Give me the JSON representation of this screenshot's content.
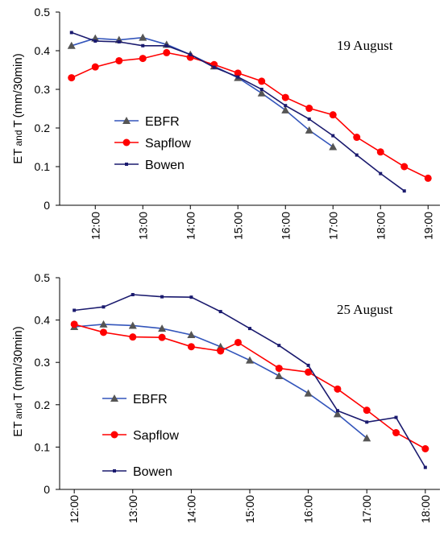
{
  "colors": {
    "ebfr": "#3355bb",
    "sapflow": "#ff0000",
    "bowen": "#1a1a6e",
    "ebfr_marker": "#555555"
  },
  "chart_data": [
    {
      "type": "line",
      "annotation": "19 August",
      "ylabel_parts": [
        "ET",
        "and",
        "T",
        "(mm/30min)"
      ],
      "ylim": [
        0,
        0.5
      ],
      "yticks": [
        "0",
        "0.1",
        "0.2",
        "0.3",
        "0.4",
        "0.5"
      ],
      "xlim": [
        11.25,
        19.25
      ],
      "xticks": [
        "12:00",
        "13:00",
        "14:00",
        "15:00",
        "16:00",
        "17:00",
        "18:00",
        "19:00"
      ],
      "legend": [
        "EBFR",
        "Sapflow",
        "Bowen"
      ],
      "series": [
        {
          "name": "EBFR",
          "x": [
            11.5,
            12.0,
            12.5,
            13.0,
            13.5,
            14.0,
            14.5,
            15.0,
            15.5,
            16.0,
            16.5,
            17.0
          ],
          "y": [
            0.413,
            0.432,
            0.428,
            0.434,
            0.416,
            0.39,
            0.36,
            0.33,
            0.29,
            0.246,
            0.194,
            0.151
          ]
        },
        {
          "name": "Sapflow",
          "x": [
            11.5,
            12.0,
            12.5,
            13.0,
            13.5,
            14.0,
            14.5,
            15.0,
            15.5,
            16.0,
            16.5,
            17.0,
            17.5,
            18.0,
            18.5,
            19.0
          ],
          "y": [
            0.33,
            0.358,
            0.374,
            0.38,
            0.395,
            0.383,
            0.364,
            0.342,
            0.321,
            0.279,
            0.251,
            0.234,
            0.176,
            0.138,
            0.1,
            0.07
          ]
        },
        {
          "name": "Bowen",
          "x": [
            11.5,
            12.0,
            12.5,
            13.0,
            13.5,
            14.0,
            14.5,
            15.0,
            15.5,
            16.0,
            16.5,
            17.0,
            17.5,
            18.0,
            18.5
          ],
          "y": [
            0.447,
            0.425,
            0.423,
            0.413,
            0.413,
            0.39,
            0.357,
            0.332,
            0.3,
            0.258,
            0.223,
            0.18,
            0.13,
            0.082,
            0.037
          ]
        }
      ]
    },
    {
      "type": "line",
      "annotation": "25 August",
      "ylabel_parts": [
        "ET",
        "and",
        "T",
        "(mm/30min)"
      ],
      "ylim": [
        0,
        0.5
      ],
      "yticks": [
        "0",
        "0.1",
        "0.2",
        "0.3",
        "0.4",
        "0.5"
      ],
      "xlim": [
        11.75,
        18.25
      ],
      "xticks": [
        "12:00",
        "13:00",
        "14:00",
        "15:00",
        "16:00",
        "17:00",
        "18:00"
      ],
      "legend": [
        "EBFR",
        "Sapflow",
        "Bowen"
      ],
      "series": [
        {
          "name": "EBFR",
          "x": [
            12.0,
            12.5,
            13.0,
            13.5,
            14.0,
            14.5,
            15.0,
            15.5,
            16.0,
            16.5,
            17.0
          ],
          "y": [
            0.384,
            0.39,
            0.387,
            0.38,
            0.365,
            0.337,
            0.305,
            0.268,
            0.227,
            0.178,
            0.121
          ]
        },
        {
          "name": "Sapflow",
          "x": [
            12.0,
            12.5,
            13.0,
            13.5,
            14.0,
            14.5,
            14.8,
            15.5,
            16.0,
            16.5,
            17.0,
            17.5,
            18.0
          ],
          "y": [
            0.39,
            0.371,
            0.36,
            0.359,
            0.337,
            0.327,
            0.347,
            0.286,
            0.277,
            0.237,
            0.187,
            0.134,
            0.096
          ]
        },
        {
          "name": "Bowen",
          "x": [
            12.0,
            12.5,
            13.0,
            13.5,
            14.0,
            14.5,
            15.0,
            15.5,
            16.0,
            16.5,
            17.0,
            17.5,
            18.0
          ],
          "y": [
            0.423,
            0.431,
            0.46,
            0.455,
            0.454,
            0.42,
            0.38,
            0.34,
            0.293,
            0.186,
            0.159,
            0.17,
            0.052
          ]
        }
      ]
    }
  ]
}
